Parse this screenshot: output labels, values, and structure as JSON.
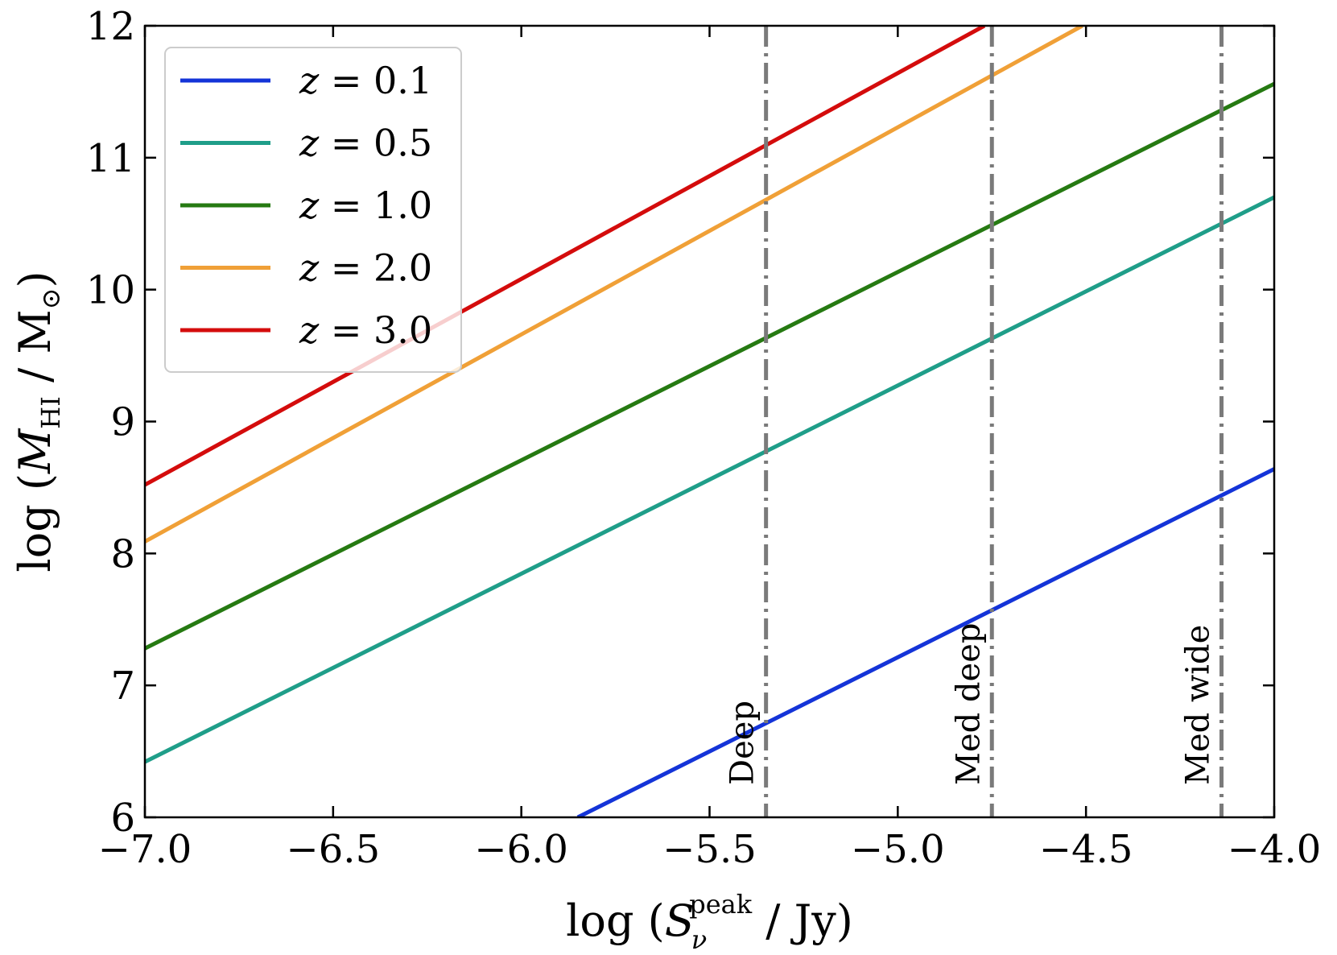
{
  "chart_data": {
    "type": "line",
    "x_axis": {
      "label_prefix": "log (",
      "label_var": "S",
      "label_subscript": "ν",
      "label_superscript": "peak",
      "label_suffix": " / Jy)",
      "range": [
        -7.0,
        -4.0
      ],
      "ticks": [
        -7.0,
        -6.5,
        -6.0,
        -5.5,
        -5.0,
        -4.5,
        -4.0
      ],
      "tick_labels": [
        "−7.0",
        "−6.5",
        "−6.0",
        "−5.5",
        "−5.0",
        "−4.5",
        "−4.0"
      ]
    },
    "y_axis": {
      "label_prefix": "log (",
      "label_var": "M",
      "label_subscript": "HI",
      "label_suffix": " / M",
      "label_sun_subscript": "⊙",
      "label_close": ")",
      "range": [
        6,
        12
      ],
      "ticks": [
        6,
        7,
        8,
        9,
        10,
        11,
        12
      ],
      "tick_labels": [
        "6",
        "7",
        "8",
        "9",
        "10",
        "11",
        "12"
      ]
    },
    "grid": false,
    "legend_position": "top-left",
    "series": [
      {
        "name": "z = 0.1",
        "label_var": "z",
        "label_value": " = 0.1",
        "color": "#1434d8",
        "x": [
          -5.85,
          -4.0
        ],
        "y": [
          6.0,
          8.64
        ]
      },
      {
        "name": "z = 0.5",
        "label_var": "z",
        "label_value": " = 0.5",
        "color": "#1f9e89",
        "x": [
          -7.0,
          -4.0
        ],
        "y": [
          6.42,
          10.7
        ]
      },
      {
        "name": "z = 1.0",
        "label_var": "z",
        "label_value": " = 1.0",
        "color": "#267a12",
        "x": [
          -7.0,
          -4.0
        ],
        "y": [
          7.28,
          11.56
        ]
      },
      {
        "name": "z = 2.0",
        "label_var": "z",
        "label_value": " = 2.0",
        "color": "#f0a037",
        "x": [
          -7.0,
          -4.51
        ],
        "y": [
          8.09,
          12.0
        ]
      },
      {
        "name": "z = 3.0",
        "label_var": "z",
        "label_value": " = 3.0",
        "color": "#d40c0c",
        "x": [
          -7.0,
          -4.77
        ],
        "y": [
          8.52,
          12.0
        ]
      }
    ],
    "vertical_lines": [
      {
        "label": "Deep",
        "x": -5.35,
        "color": "#7a7a7a"
      },
      {
        "label": "Med deep",
        "x": -4.75,
        "color": "#7a7a7a"
      },
      {
        "label": "Med wide",
        "x": -4.14,
        "color": "#7a7a7a"
      }
    ]
  }
}
